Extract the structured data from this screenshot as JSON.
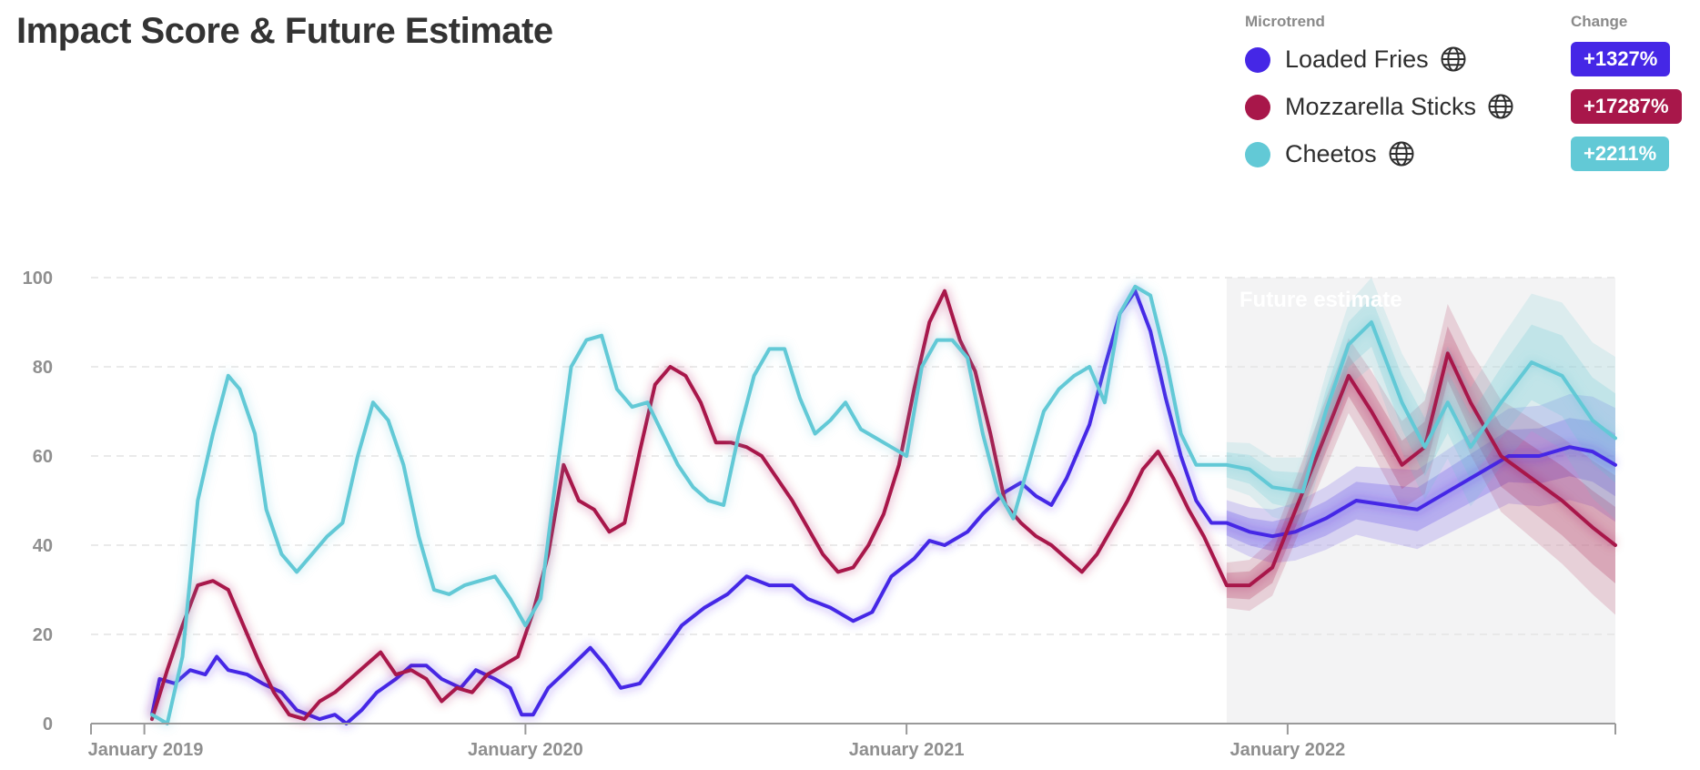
{
  "chart_data": {
    "type": "line",
    "title": "Impact Score & Future Estimate",
    "xlabel": "",
    "ylabel": "",
    "ylim": [
      0,
      100
    ],
    "yticks": [
      0,
      20,
      40,
      60,
      80,
      100
    ],
    "x_range": [
      "2018-11",
      "2022-12"
    ],
    "x_tick_labels": [
      "January 2019",
      "January 2020",
      "January 2021",
      "January 2022"
    ],
    "x_tick_positions": [
      2019.0,
      2020.0,
      2021.0,
      2022.0
    ],
    "x_start": 2018.86,
    "x_end": 2022.86,
    "future_start": 2021.84,
    "future_label": "Future estimate",
    "grid": "horizontal dashed",
    "legend_position": "top-right",
    "series": [
      {
        "name": "Loaded Fries",
        "color": "#4527e6",
        "change": "+1327%",
        "points": [
          [
            2019.02,
            2
          ],
          [
            2019.04,
            10
          ],
          [
            2019.08,
            9
          ],
          [
            2019.12,
            12
          ],
          [
            2019.16,
            11
          ],
          [
            2019.19,
            15
          ],
          [
            2019.22,
            12
          ],
          [
            2019.27,
            11
          ],
          [
            2019.31,
            9
          ],
          [
            2019.36,
            7
          ],
          [
            2019.4,
            3
          ],
          [
            2019.43,
            2
          ],
          [
            2019.46,
            1
          ],
          [
            2019.5,
            2
          ],
          [
            2019.53,
            0
          ],
          [
            2019.57,
            3
          ],
          [
            2019.61,
            7
          ],
          [
            2019.66,
            10
          ],
          [
            2019.7,
            13
          ],
          [
            2019.74,
            13
          ],
          [
            2019.78,
            10
          ],
          [
            2019.83,
            8
          ],
          [
            2019.87,
            12
          ],
          [
            2019.92,
            10
          ],
          [
            2019.96,
            8
          ],
          [
            2019.99,
            2
          ],
          [
            2020.02,
            2
          ],
          [
            2020.06,
            8
          ],
          [
            2020.11,
            12
          ],
          [
            2020.17,
            17
          ],
          [
            2020.21,
            13
          ],
          [
            2020.25,
            8
          ],
          [
            2020.3,
            9
          ],
          [
            2020.36,
            16
          ],
          [
            2020.41,
            22
          ],
          [
            2020.47,
            26
          ],
          [
            2020.53,
            29
          ],
          [
            2020.58,
            33
          ],
          [
            2020.64,
            31
          ],
          [
            2020.7,
            31
          ],
          [
            2020.74,
            28
          ],
          [
            2020.8,
            26
          ],
          [
            2020.86,
            23
          ],
          [
            2020.91,
            25
          ],
          [
            2020.96,
            33
          ],
          [
            2021.02,
            37
          ],
          [
            2021.06,
            41
          ],
          [
            2021.1,
            40
          ],
          [
            2021.16,
            43
          ],
          [
            2021.2,
            47
          ],
          [
            2021.26,
            52
          ],
          [
            2021.3,
            54
          ],
          [
            2021.34,
            51
          ],
          [
            2021.38,
            49
          ],
          [
            2021.42,
            55
          ],
          [
            2021.48,
            67
          ],
          [
            2021.52,
            80
          ],
          [
            2021.56,
            92
          ],
          [
            2021.6,
            97
          ],
          [
            2021.64,
            88
          ],
          [
            2021.68,
            73
          ],
          [
            2021.72,
            60
          ],
          [
            2021.76,
            50
          ],
          [
            2021.8,
            45
          ],
          [
            2021.84,
            45
          ],
          [
            2021.9,
            43
          ],
          [
            2021.96,
            42
          ],
          [
            2022.02,
            43
          ],
          [
            2022.1,
            46
          ],
          [
            2022.18,
            50
          ],
          [
            2022.26,
            49
          ],
          [
            2022.34,
            48
          ],
          [
            2022.42,
            52
          ],
          [
            2022.5,
            56
          ],
          [
            2022.58,
            60
          ],
          [
            2022.66,
            60
          ],
          [
            2022.74,
            62
          ],
          [
            2022.8,
            61
          ],
          [
            2022.86,
            58
          ]
        ]
      },
      {
        "name": "Mozzarella Sticks",
        "color": "#a8174a",
        "change": "+17287%",
        "points": [
          [
            2019.02,
            1
          ],
          [
            2019.06,
            12
          ],
          [
            2019.1,
            22
          ],
          [
            2019.14,
            31
          ],
          [
            2019.18,
            32
          ],
          [
            2019.22,
            30
          ],
          [
            2019.26,
            22
          ],
          [
            2019.3,
            14
          ],
          [
            2019.34,
            7
          ],
          [
            2019.38,
            2
          ],
          [
            2019.42,
            1
          ],
          [
            2019.46,
            5
          ],
          [
            2019.5,
            7
          ],
          [
            2019.54,
            10
          ],
          [
            2019.58,
            13
          ],
          [
            2019.62,
            16
          ],
          [
            2019.66,
            11
          ],
          [
            2019.7,
            12
          ],
          [
            2019.74,
            10
          ],
          [
            2019.78,
            5
          ],
          [
            2019.82,
            8
          ],
          [
            2019.86,
            7
          ],
          [
            2019.9,
            11
          ],
          [
            2019.94,
            13
          ],
          [
            2019.98,
            15
          ],
          [
            2020.02,
            25
          ],
          [
            2020.06,
            38
          ],
          [
            2020.1,
            58
          ],
          [
            2020.14,
            50
          ],
          [
            2020.18,
            48
          ],
          [
            2020.22,
            43
          ],
          [
            2020.26,
            45
          ],
          [
            2020.3,
            61
          ],
          [
            2020.34,
            76
          ],
          [
            2020.38,
            80
          ],
          [
            2020.42,
            78
          ],
          [
            2020.46,
            72
          ],
          [
            2020.5,
            63
          ],
          [
            2020.54,
            63
          ],
          [
            2020.58,
            62
          ],
          [
            2020.62,
            60
          ],
          [
            2020.66,
            55
          ],
          [
            2020.7,
            50
          ],
          [
            2020.74,
            44
          ],
          [
            2020.78,
            38
          ],
          [
            2020.82,
            34
          ],
          [
            2020.86,
            35
          ],
          [
            2020.9,
            40
          ],
          [
            2020.94,
            47
          ],
          [
            2020.98,
            58
          ],
          [
            2021.02,
            75
          ],
          [
            2021.06,
            90
          ],
          [
            2021.1,
            97
          ],
          [
            2021.14,
            86
          ],
          [
            2021.18,
            79
          ],
          [
            2021.22,
            65
          ],
          [
            2021.26,
            49
          ],
          [
            2021.3,
            45
          ],
          [
            2021.34,
            42
          ],
          [
            2021.38,
            40
          ],
          [
            2021.42,
            37
          ],
          [
            2021.46,
            34
          ],
          [
            2021.5,
            38
          ],
          [
            2021.54,
            44
          ],
          [
            2021.58,
            50
          ],
          [
            2021.62,
            57
          ],
          [
            2021.66,
            61
          ],
          [
            2021.7,
            55
          ],
          [
            2021.74,
            48
          ],
          [
            2021.78,
            42
          ],
          [
            2021.84,
            31
          ],
          [
            2021.9,
            31
          ],
          [
            2021.96,
            35
          ],
          [
            2022.04,
            52
          ],
          [
            2022.1,
            65
          ],
          [
            2022.16,
            78
          ],
          [
            2022.22,
            70
          ],
          [
            2022.3,
            58
          ],
          [
            2022.36,
            62
          ],
          [
            2022.42,
            83
          ],
          [
            2022.48,
            72
          ],
          [
            2022.56,
            60
          ],
          [
            2022.64,
            55
          ],
          [
            2022.72,
            50
          ],
          [
            2022.8,
            44
          ],
          [
            2022.86,
            40
          ]
        ]
      },
      {
        "name": "Cheetos",
        "color": "#62c9d6",
        "change": "+2211%",
        "points": [
          [
            2019.02,
            2
          ],
          [
            2019.06,
            0
          ],
          [
            2019.1,
            15
          ],
          [
            2019.14,
            50
          ],
          [
            2019.18,
            65
          ],
          [
            2019.22,
            78
          ],
          [
            2019.25,
            75
          ],
          [
            2019.29,
            65
          ],
          [
            2019.32,
            48
          ],
          [
            2019.36,
            38
          ],
          [
            2019.4,
            34
          ],
          [
            2019.44,
            38
          ],
          [
            2019.48,
            42
          ],
          [
            2019.52,
            45
          ],
          [
            2019.56,
            60
          ],
          [
            2019.6,
            72
          ],
          [
            2019.64,
            68
          ],
          [
            2019.68,
            58
          ],
          [
            2019.72,
            42
          ],
          [
            2019.76,
            30
          ],
          [
            2019.8,
            29
          ],
          [
            2019.84,
            31
          ],
          [
            2019.88,
            32
          ],
          [
            2019.92,
            33
          ],
          [
            2019.96,
            28
          ],
          [
            2020.0,
            22
          ],
          [
            2020.04,
            28
          ],
          [
            2020.08,
            55
          ],
          [
            2020.12,
            80
          ],
          [
            2020.16,
            86
          ],
          [
            2020.2,
            87
          ],
          [
            2020.24,
            75
          ],
          [
            2020.28,
            71
          ],
          [
            2020.32,
            72
          ],
          [
            2020.36,
            65
          ],
          [
            2020.4,
            58
          ],
          [
            2020.44,
            53
          ],
          [
            2020.48,
            50
          ],
          [
            2020.52,
            49
          ],
          [
            2020.56,
            65
          ],
          [
            2020.6,
            78
          ],
          [
            2020.64,
            84
          ],
          [
            2020.68,
            84
          ],
          [
            2020.72,
            73
          ],
          [
            2020.76,
            65
          ],
          [
            2020.8,
            68
          ],
          [
            2020.84,
            72
          ],
          [
            2020.88,
            66
          ],
          [
            2020.92,
            64
          ],
          [
            2020.96,
            62
          ],
          [
            2021.0,
            60
          ],
          [
            2021.04,
            80
          ],
          [
            2021.08,
            86
          ],
          [
            2021.12,
            86
          ],
          [
            2021.16,
            82
          ],
          [
            2021.2,
            65
          ],
          [
            2021.24,
            52
          ],
          [
            2021.28,
            46
          ],
          [
            2021.32,
            58
          ],
          [
            2021.36,
            70
          ],
          [
            2021.4,
            75
          ],
          [
            2021.44,
            78
          ],
          [
            2021.48,
            80
          ],
          [
            2021.52,
            72
          ],
          [
            2021.56,
            92
          ],
          [
            2021.6,
            98
          ],
          [
            2021.64,
            96
          ],
          [
            2021.68,
            82
          ],
          [
            2021.72,
            65
          ],
          [
            2021.76,
            58
          ],
          [
            2021.84,
            58
          ],
          [
            2021.9,
            57
          ],
          [
            2021.96,
            53
          ],
          [
            2022.04,
            52
          ],
          [
            2022.1,
            70
          ],
          [
            2022.16,
            85
          ],
          [
            2022.22,
            90
          ],
          [
            2022.3,
            72
          ],
          [
            2022.36,
            62
          ],
          [
            2022.42,
            72
          ],
          [
            2022.48,
            62
          ],
          [
            2022.56,
            72
          ],
          [
            2022.64,
            81
          ],
          [
            2022.72,
            78
          ],
          [
            2022.8,
            68
          ],
          [
            2022.86,
            64
          ]
        ]
      }
    ]
  }
}
